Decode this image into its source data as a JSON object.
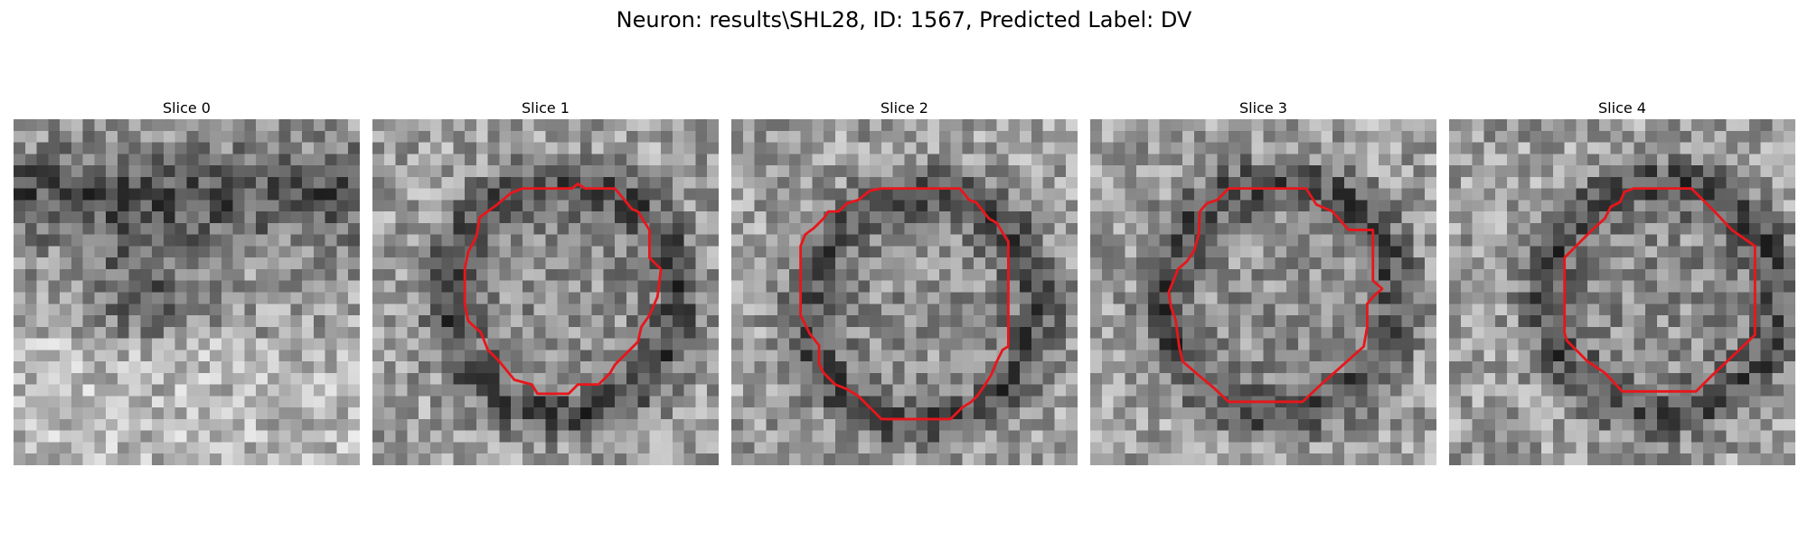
{
  "figure": {
    "title": "Neuron: results\\SHL28, ID: 1567, Predicted Label: DV"
  },
  "panels": [
    {
      "title": "Slice 0",
      "has_contour": false,
      "dark_ring": false,
      "seed": 11
    },
    {
      "title": "Slice 1",
      "has_contour": true,
      "dark_ring": true,
      "seed": 23,
      "contour": [
        [
          16,
          6
        ],
        [
          17.3,
          6
        ],
        [
          17.8,
          5.6
        ],
        [
          18.4,
          6
        ],
        [
          21,
          6
        ],
        [
          22.5,
          7.8
        ],
        [
          23,
          8
        ],
        [
          24,
          9.6
        ],
        [
          24,
          12
        ],
        [
          25,
          13
        ],
        [
          24.7,
          15.4
        ],
        [
          24,
          17
        ],
        [
          23.3,
          18
        ],
        [
          23,
          19.3
        ],
        [
          22,
          20.3
        ],
        [
          21,
          21.3
        ],
        [
          20.6,
          22
        ],
        [
          19.6,
          23
        ],
        [
          17.8,
          23
        ],
        [
          17,
          23.8
        ],
        [
          14.3,
          23.8
        ],
        [
          13.8,
          23
        ],
        [
          12.3,
          22.6
        ],
        [
          11,
          21
        ],
        [
          10,
          20
        ],
        [
          9.4,
          18.5
        ],
        [
          8.3,
          17.5
        ],
        [
          8,
          16
        ],
        [
          8,
          13
        ],
        [
          8.3,
          11.5
        ],
        [
          9,
          10.2
        ],
        [
          9.3,
          8.5
        ],
        [
          10.8,
          7.4
        ],
        [
          12,
          6.4
        ],
        [
          13,
          6
        ]
      ]
    },
    {
      "title": "Slice 2",
      "has_contour": true,
      "dark_ring": true,
      "seed": 37,
      "contour": [
        [
          13,
          6
        ],
        [
          19.8,
          6
        ],
        [
          20.6,
          7
        ],
        [
          21.2,
          7.2
        ],
        [
          22.3,
          8.6
        ],
        [
          23,
          9
        ],
        [
          23.6,
          10
        ],
        [
          24,
          10.6
        ],
        [
          24,
          19.7
        ],
        [
          23.5,
          20
        ],
        [
          23,
          21
        ],
        [
          22.5,
          22.2
        ],
        [
          21.8,
          23.3
        ],
        [
          21.3,
          24
        ],
        [
          20.8,
          24.5
        ],
        [
          20,
          25
        ],
        [
          19,
          26
        ],
        [
          13,
          26
        ],
        [
          12,
          25
        ],
        [
          11,
          24
        ],
        [
          10,
          23.4
        ],
        [
          9,
          23
        ],
        [
          8,
          22
        ],
        [
          7.6,
          21.2
        ],
        [
          7.6,
          19.6
        ],
        [
          6.8,
          18.6
        ],
        [
          6,
          17
        ],
        [
          6,
          13
        ],
        [
          6,
          11
        ],
        [
          6.4,
          10
        ],
        [
          7.2,
          9.4
        ],
        [
          8,
          8.6
        ],
        [
          8.4,
          8
        ],
        [
          9.3,
          8
        ],
        [
          10,
          7.3
        ],
        [
          11,
          7
        ],
        [
          12,
          6.2
        ]
      ]
    },
    {
      "title": "Slice 3",
      "has_contour": true,
      "dark_ring": true,
      "seed": 51,
      "contour": [
        [
          12,
          6
        ],
        [
          16,
          6
        ],
        [
          18.7,
          6
        ],
        [
          19.6,
          7.4
        ],
        [
          21,
          8
        ],
        [
          22.4,
          9.6
        ],
        [
          24.5,
          9.6
        ],
        [
          24.5,
          14
        ],
        [
          25.3,
          14.7
        ],
        [
          24.6,
          15.3
        ],
        [
          24,
          16
        ],
        [
          24,
          18
        ],
        [
          23.7,
          19.7
        ],
        [
          21.8,
          21.4
        ],
        [
          20,
          23
        ],
        [
          18.4,
          24.5
        ],
        [
          12,
          24.5
        ],
        [
          10.6,
          23.2
        ],
        [
          9.4,
          22.2
        ],
        [
          8,
          21
        ],
        [
          7.7,
          19.7
        ],
        [
          7.4,
          17.4
        ],
        [
          7,
          16.3
        ],
        [
          6.8,
          15
        ],
        [
          7.2,
          14
        ],
        [
          7.6,
          13
        ],
        [
          8.4,
          12.3
        ],
        [
          9,
          11.4
        ],
        [
          9.4,
          10
        ],
        [
          9.5,
          8
        ],
        [
          10.1,
          7.3
        ],
        [
          11,
          7
        ]
      ]
    },
    {
      "title": "Slice 4",
      "has_contour": true,
      "dark_ring": true,
      "seed": 67,
      "contour": [
        [
          16,
          6
        ],
        [
          21,
          6
        ],
        [
          23,
          8
        ],
        [
          24.5,
          9.6
        ],
        [
          26.5,
          11
        ],
        [
          26.5,
          18.7
        ],
        [
          24.5,
          20.6
        ],
        [
          22.8,
          22.2
        ],
        [
          22,
          23
        ],
        [
          21.4,
          23.6
        ],
        [
          15,
          23.6
        ],
        [
          13.5,
          22
        ],
        [
          12,
          21
        ],
        [
          10.2,
          19.2
        ],
        [
          10,
          18.5
        ],
        [
          10,
          12
        ],
        [
          11.5,
          10.5
        ],
        [
          12.5,
          9.5
        ],
        [
          13.5,
          8.6
        ],
        [
          14,
          7.6
        ],
        [
          14.8,
          7.2
        ],
        [
          15.2,
          6.3
        ]
      ]
    }
  ],
  "colors": {
    "contour": "#e8161b",
    "background": "#ffffff"
  }
}
